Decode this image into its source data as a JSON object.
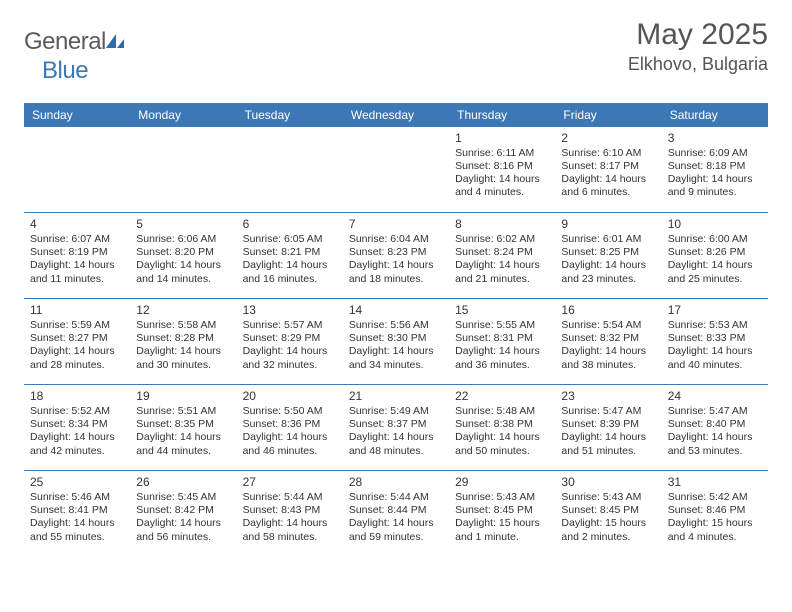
{
  "logo": {
    "text1": "General",
    "text2": "Blue"
  },
  "title": "May 2025",
  "subtitle": "Elkhovo, Bulgaria",
  "colors": {
    "header_bg": "#3b78b5",
    "header_fg": "#ffffff",
    "border": "#3b78b5",
    "text": "#333333",
    "title": "#555555",
    "logo_gray": "#5a5a5a",
    "logo_blue": "#3b78b5"
  },
  "weekdays": [
    "Sunday",
    "Monday",
    "Tuesday",
    "Wednesday",
    "Thursday",
    "Friday",
    "Saturday"
  ],
  "weeks": [
    [
      null,
      null,
      null,
      null,
      {
        "n": "1",
        "sr": "6:11 AM",
        "ss": "8:16 PM",
        "dl": "14 hours and 4 minutes."
      },
      {
        "n": "2",
        "sr": "6:10 AM",
        "ss": "8:17 PM",
        "dl": "14 hours and 6 minutes."
      },
      {
        "n": "3",
        "sr": "6:09 AM",
        "ss": "8:18 PM",
        "dl": "14 hours and 9 minutes."
      }
    ],
    [
      {
        "n": "4",
        "sr": "6:07 AM",
        "ss": "8:19 PM",
        "dl": "14 hours and 11 minutes."
      },
      {
        "n": "5",
        "sr": "6:06 AM",
        "ss": "8:20 PM",
        "dl": "14 hours and 14 minutes."
      },
      {
        "n": "6",
        "sr": "6:05 AM",
        "ss": "8:21 PM",
        "dl": "14 hours and 16 minutes."
      },
      {
        "n": "7",
        "sr": "6:04 AM",
        "ss": "8:23 PM",
        "dl": "14 hours and 18 minutes."
      },
      {
        "n": "8",
        "sr": "6:02 AM",
        "ss": "8:24 PM",
        "dl": "14 hours and 21 minutes."
      },
      {
        "n": "9",
        "sr": "6:01 AM",
        "ss": "8:25 PM",
        "dl": "14 hours and 23 minutes."
      },
      {
        "n": "10",
        "sr": "6:00 AM",
        "ss": "8:26 PM",
        "dl": "14 hours and 25 minutes."
      }
    ],
    [
      {
        "n": "11",
        "sr": "5:59 AM",
        "ss": "8:27 PM",
        "dl": "14 hours and 28 minutes."
      },
      {
        "n": "12",
        "sr": "5:58 AM",
        "ss": "8:28 PM",
        "dl": "14 hours and 30 minutes."
      },
      {
        "n": "13",
        "sr": "5:57 AM",
        "ss": "8:29 PM",
        "dl": "14 hours and 32 minutes."
      },
      {
        "n": "14",
        "sr": "5:56 AM",
        "ss": "8:30 PM",
        "dl": "14 hours and 34 minutes."
      },
      {
        "n": "15",
        "sr": "5:55 AM",
        "ss": "8:31 PM",
        "dl": "14 hours and 36 minutes."
      },
      {
        "n": "16",
        "sr": "5:54 AM",
        "ss": "8:32 PM",
        "dl": "14 hours and 38 minutes."
      },
      {
        "n": "17",
        "sr": "5:53 AM",
        "ss": "8:33 PM",
        "dl": "14 hours and 40 minutes."
      }
    ],
    [
      {
        "n": "18",
        "sr": "5:52 AM",
        "ss": "8:34 PM",
        "dl": "14 hours and 42 minutes."
      },
      {
        "n": "19",
        "sr": "5:51 AM",
        "ss": "8:35 PM",
        "dl": "14 hours and 44 minutes."
      },
      {
        "n": "20",
        "sr": "5:50 AM",
        "ss": "8:36 PM",
        "dl": "14 hours and 46 minutes."
      },
      {
        "n": "21",
        "sr": "5:49 AM",
        "ss": "8:37 PM",
        "dl": "14 hours and 48 minutes."
      },
      {
        "n": "22",
        "sr": "5:48 AM",
        "ss": "8:38 PM",
        "dl": "14 hours and 50 minutes."
      },
      {
        "n": "23",
        "sr": "5:47 AM",
        "ss": "8:39 PM",
        "dl": "14 hours and 51 minutes."
      },
      {
        "n": "24",
        "sr": "5:47 AM",
        "ss": "8:40 PM",
        "dl": "14 hours and 53 minutes."
      }
    ],
    [
      {
        "n": "25",
        "sr": "5:46 AM",
        "ss": "8:41 PM",
        "dl": "14 hours and 55 minutes."
      },
      {
        "n": "26",
        "sr": "5:45 AM",
        "ss": "8:42 PM",
        "dl": "14 hours and 56 minutes."
      },
      {
        "n": "27",
        "sr": "5:44 AM",
        "ss": "8:43 PM",
        "dl": "14 hours and 58 minutes."
      },
      {
        "n": "28",
        "sr": "5:44 AM",
        "ss": "8:44 PM",
        "dl": "14 hours and 59 minutes."
      },
      {
        "n": "29",
        "sr": "5:43 AM",
        "ss": "8:45 PM",
        "dl": "15 hours and 1 minute."
      },
      {
        "n": "30",
        "sr": "5:43 AM",
        "ss": "8:45 PM",
        "dl": "15 hours and 2 minutes."
      },
      {
        "n": "31",
        "sr": "5:42 AM",
        "ss": "8:46 PM",
        "dl": "15 hours and 4 minutes."
      }
    ]
  ],
  "labels": {
    "sunrise": "Sunrise:",
    "sunset": "Sunset:",
    "daylight": "Daylight:"
  }
}
